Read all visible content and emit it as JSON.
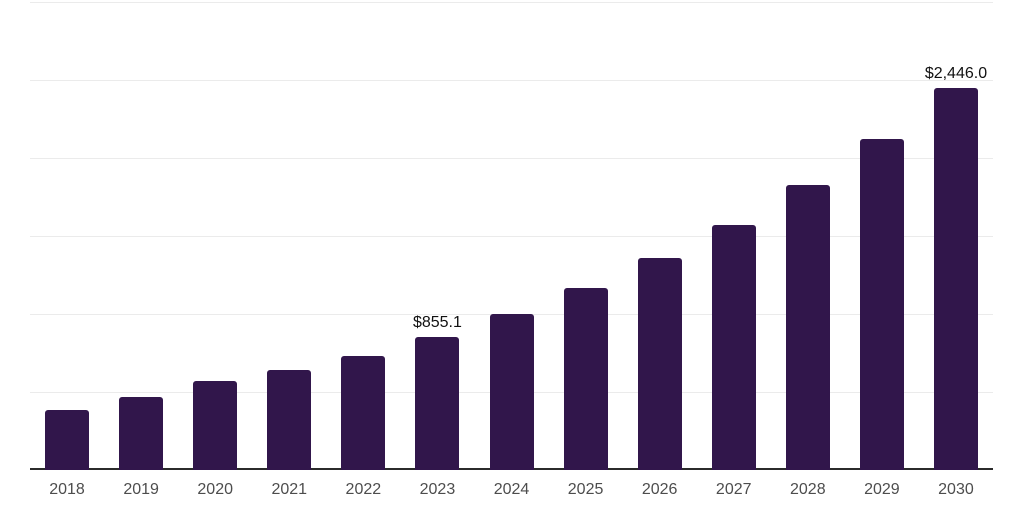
{
  "chart_data": {
    "type": "bar",
    "title": "",
    "xlabel": "",
    "ylabel": "",
    "categories": [
      "2018",
      "2019",
      "2020",
      "2021",
      "2022",
      "2023",
      "2024",
      "2025",
      "2026",
      "2027",
      "2028",
      "2029",
      "2030"
    ],
    "values": [
      385,
      465,
      570,
      640,
      730,
      855.1,
      1000,
      1165,
      1360,
      1570,
      1830,
      2120,
      2446
    ],
    "annotations": [
      {
        "category": "2023",
        "label": "$855.1"
      },
      {
        "category": "2030",
        "label": "$2,446.0"
      }
    ],
    "ylim": [
      0,
      3000
    ],
    "gridline_step": 500,
    "grid": "horizontal",
    "legend": "none",
    "bar_color": "#31164b",
    "gridline_color": "#ebebeb",
    "axis_line_color": "#2b2b2b",
    "tick_label_color": "#4d4d4d",
    "annotation_color": "#111111"
  }
}
